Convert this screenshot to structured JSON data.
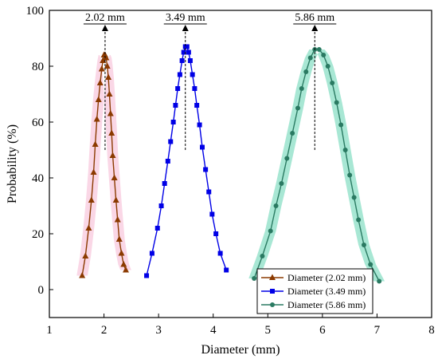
{
  "chart_data": {
    "type": "line",
    "xlabel": "Diameter (mm)",
    "ylabel": "Probability (%)",
    "xlim": [
      1,
      8
    ],
    "ylim": [
      -10,
      100
    ],
    "xticks": [
      "1",
      "2",
      "3",
      "4",
      "5",
      "6",
      "7",
      "8"
    ],
    "yticks": [
      "0",
      "20",
      "40",
      "60",
      "80",
      "100"
    ],
    "legend_position": "bottom-right",
    "annotations": [
      {
        "text": "2.02 mm",
        "x": 2.02,
        "peak": 84
      },
      {
        "text": "3.49 mm",
        "x": 3.49,
        "peak": 87
      },
      {
        "text": "5.86 mm",
        "x": 5.86,
        "peak": 86
      }
    ],
    "series": [
      {
        "name": "Diameter (2.02 mm)",
        "color": "#8b3a00",
        "band_color": "#f4a6c8",
        "marker": "triangle",
        "x": [
          1.6,
          1.66,
          1.72,
          1.77,
          1.81,
          1.84,
          1.87,
          1.9,
          1.93,
          1.96,
          1.98,
          2.0,
          2.02,
          2.04,
          2.06,
          2.08,
          2.1,
          2.12,
          2.14,
          2.16,
          2.19,
          2.22,
          2.25,
          2.28,
          2.32,
          2.36,
          2.4
        ],
        "y": [
          5,
          12,
          22,
          32,
          42,
          52,
          61,
          68,
          74,
          79,
          82,
          84,
          84,
          83,
          80,
          76,
          70,
          63,
          56,
          48,
          40,
          32,
          25,
          18,
          13,
          9,
          7
        ]
      },
      {
        "name": "Diameter (3.49 mm)",
        "color": "#0000e6",
        "band_color": "",
        "marker": "square",
        "x": [
          2.78,
          2.88,
          2.98,
          3.05,
          3.11,
          3.17,
          3.22,
          3.27,
          3.31,
          3.35,
          3.39,
          3.43,
          3.46,
          3.49,
          3.52,
          3.55,
          3.58,
          3.62,
          3.66,
          3.7,
          3.75,
          3.8,
          3.86,
          3.92,
          3.98,
          4.05,
          4.13,
          4.24
        ],
        "y": [
          5,
          13,
          22,
          30,
          38,
          46,
          53,
          60,
          66,
          72,
          77,
          82,
          85,
          87,
          87,
          85,
          82,
          77,
          72,
          66,
          59,
          51,
          43,
          35,
          27,
          20,
          13,
          7
        ]
      },
      {
        "name": "Diameter (5.86 mm)",
        "color": "#2a7a62",
        "band_color": "#3fc9a0",
        "marker": "circle",
        "x": [
          4.75,
          4.9,
          5.05,
          5.15,
          5.25,
          5.35,
          5.45,
          5.55,
          5.62,
          5.7,
          5.78,
          5.86,
          5.94,
          6.02,
          6.1,
          6.18,
          6.26,
          6.34,
          6.42,
          6.5,
          6.58,
          6.66,
          6.76,
          6.88,
          7.04
        ],
        "y": [
          4,
          12,
          21,
          30,
          38,
          47,
          56,
          65,
          72,
          78,
          83,
          86,
          86,
          84,
          80,
          74,
          67,
          59,
          50,
          41,
          33,
          25,
          16,
          9,
          3
        ]
      }
    ]
  }
}
